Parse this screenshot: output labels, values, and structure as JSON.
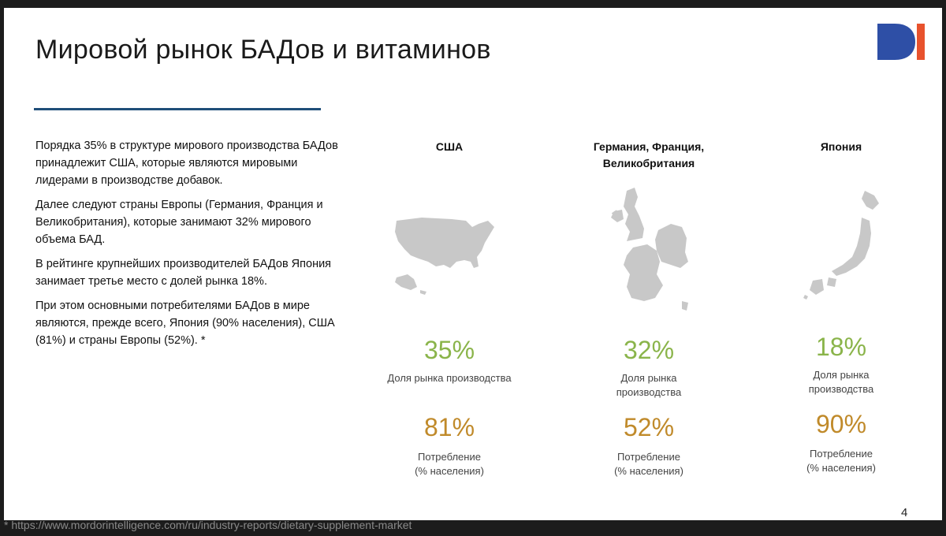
{
  "slide": {
    "title": "Мировой рынок БАДов и витаминов",
    "page_number": "4",
    "footnote": "* https://www.mordorintelligence.com/ru/industry-reports/dietary-supplement-market",
    "accent_line_color": "#1f4e79",
    "logo_colors": {
      "left": "#2e4fa6",
      "right": "#e8522d"
    }
  },
  "paragraphs": [
    "Порядка 35% в структуре мирового производства БАДов принадлежит США, которые являются мировыми лидерами в производстве добавок.",
    "Далее следуют страны Европы (Германия, Франция и Великобритания), которые занимают 32% мирового объема БАД.",
    "В рейтинге крупнейших производителей БАДов Япония занимает третье место с долей рынка 18%.",
    "При этом основными потребителями БАДов в мире являются, прежде всего, Япония (90% населения), США (81%) и страны Европы (52%). *"
  ],
  "regions": [
    {
      "name": "США",
      "map_icon": "usa-map-icon",
      "production_share": "35%",
      "production_label": "Доля рынка производства",
      "consumption": "81%",
      "consumption_label": "Потребление\n(% населения)"
    },
    {
      "name": "Германия, Франция,\nВеликобритания",
      "map_icon": "western-europe-map-icon",
      "production_share": "32%",
      "production_label": "Доля рынка\nпроизводства",
      "consumption": "52%",
      "consumption_label": "Потребление\n(% населения)"
    },
    {
      "name": "Япония",
      "map_icon": "japan-map-icon",
      "production_share": "18%",
      "production_label": "Доля рынка\nпроизводства",
      "consumption": "90%",
      "consumption_label": "Потребление\n(% населения)"
    }
  ],
  "colors": {
    "production": "#8ab44a",
    "consumption": "#c08a2a",
    "map_fill": "#c8c8c8"
  }
}
